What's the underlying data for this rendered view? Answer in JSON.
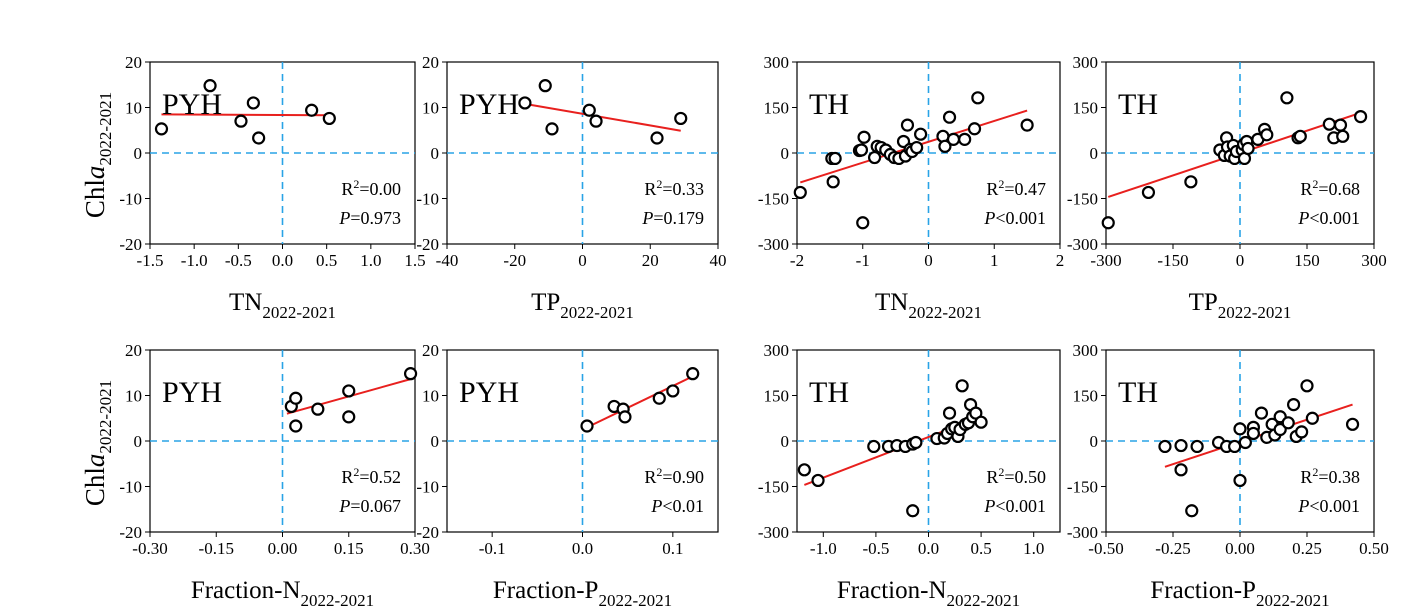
{
  "figure": {
    "ylabel_main": "Chl",
    "ylabel_italic": "a",
    "ylabel_sub": "2022-2021"
  },
  "chart_data": [
    {
      "type": "scatter",
      "label": "PYH",
      "xlabel": {
        "main": "TN",
        "sub": "2022-2021"
      },
      "xlim": [
        -1.5,
        1.5
      ],
      "ylim": [
        -20,
        20
      ],
      "xticks": [
        -1.5,
        -1.0,
        -0.5,
        0.0,
        0.5,
        1.0,
        1.5
      ],
      "xtick_labels": [
        "-1.5",
        "-1.0",
        "-0.5",
        "0.0",
        "0.5",
        "1.0",
        "1.5"
      ],
      "yticks": [
        20,
        10,
        0,
        -10,
        -20
      ],
      "ytick_labels": [
        "20",
        "10",
        "0",
        "-10",
        "-20"
      ],
      "points": [
        [
          -1.37,
          5.3
        ],
        [
          -0.82,
          14.8
        ],
        [
          -0.47,
          7.0
        ],
        [
          -0.33,
          11.0
        ],
        [
          -0.27,
          3.3
        ],
        [
          0.33,
          9.4
        ],
        [
          0.53,
          7.6
        ]
      ],
      "fit": {
        "x": [
          -1.37,
          0.53
        ],
        "y": [
          8.5,
          8.3
        ]
      },
      "r2": "0.00",
      "p_op": "=",
      "p": "0.973"
    },
    {
      "type": "scatter",
      "label": "PYH",
      "xlabel": {
        "main": "TP",
        "sub": "2022-2021"
      },
      "xlim": [
        -40,
        40
      ],
      "ylim": [
        -20,
        20
      ],
      "xticks": [
        -40,
        -20,
        0,
        20,
        40
      ],
      "xtick_labels": [
        "-40",
        "-20",
        "0",
        "20",
        "40"
      ],
      "yticks": [
        20,
        10,
        0,
        -10,
        -20
      ],
      "ytick_labels": [
        "20",
        "10",
        "0",
        "-10",
        "-20"
      ],
      "points": [
        [
          -11,
          14.8
        ],
        [
          -9,
          5.3
        ],
        [
          2,
          9.4
        ],
        [
          4,
          7.0
        ],
        [
          22,
          3.3
        ],
        [
          29,
          7.6
        ],
        [
          -17,
          11.0
        ]
      ],
      "fit": {
        "x": [
          -17,
          29
        ],
        "y": [
          10.8,
          4.9
        ]
      },
      "r2": "0.33",
      "p_op": "=",
      "p": "0.179"
    },
    {
      "type": "scatter",
      "label": "TH",
      "xlabel": {
        "main": "TN",
        "sub": "2022-2021"
      },
      "xlim": [
        -2,
        2
      ],
      "ylim": [
        -300,
        300
      ],
      "xticks": [
        -2,
        -1,
        0,
        1,
        2
      ],
      "xtick_labels": [
        "-2",
        "-1",
        "0",
        "1",
        "2"
      ],
      "yticks": [
        300,
        150,
        0,
        -150,
        -300
      ],
      "ytick_labels": [
        "300",
        "150",
        "0",
        "-150",
        "-300"
      ],
      "points": [
        [
          -1.95,
          -130
        ],
        [
          -1.47,
          -18
        ],
        [
          -1.42,
          -18
        ],
        [
          -1.45,
          -95
        ],
        [
          -1.05,
          8
        ],
        [
          -1.02,
          10
        ],
        [
          -0.98,
          52
        ],
        [
          -1.0,
          -230
        ],
        [
          -0.82,
          -15
        ],
        [
          -0.78,
          22
        ],
        [
          -0.72,
          18
        ],
        [
          -0.65,
          10
        ],
        [
          -0.58,
          -5
        ],
        [
          -0.52,
          -15
        ],
        [
          -0.45,
          -18
        ],
        [
          -0.38,
          38
        ],
        [
          -0.35,
          -10
        ],
        [
          -0.32,
          92
        ],
        [
          -0.28,
          12
        ],
        [
          -0.25,
          5
        ],
        [
          -0.18,
          18
        ],
        [
          -0.12,
          62
        ],
        [
          0.22,
          55
        ],
        [
          0.25,
          22
        ],
        [
          0.32,
          118
        ],
        [
          0.38,
          45
        ],
        [
          0.55,
          45
        ],
        [
          0.7,
          80
        ],
        [
          0.75,
          182
        ],
        [
          1.5,
          92
        ]
      ],
      "fit": {
        "x": [
          -1.95,
          1.5
        ],
        "y": [
          -97,
          140
        ]
      },
      "r2": "0.47",
      "p_op": "<",
      "p": "0.001"
    },
    {
      "type": "scatter",
      "label": "TH",
      "xlabel": {
        "main": "TP",
        "sub": "2022-2021"
      },
      "xlim": [
        -300,
        300
      ],
      "ylim": [
        -300,
        300
      ],
      "xticks": [
        -300,
        -150,
        0,
        150,
        300
      ],
      "xtick_labels": [
        "-300",
        "-150",
        "0",
        "150",
        "300"
      ],
      "yticks": [
        300,
        150,
        0,
        -150,
        -300
      ],
      "ytick_labels": [
        "300",
        "150",
        "0",
        "-150",
        "-300"
      ],
      "points": [
        [
          -295,
          -230
        ],
        [
          -205,
          -130
        ],
        [
          -110,
          -95
        ],
        [
          -45,
          10
        ],
        [
          -35,
          -8
        ],
        [
          -30,
          50
        ],
        [
          -28,
          20
        ],
        [
          -22,
          -10
        ],
        [
          -15,
          25
        ],
        [
          -12,
          -18
        ],
        [
          -8,
          5
        ],
        [
          5,
          10
        ],
        [
          8,
          28
        ],
        [
          10,
          -18
        ],
        [
          15,
          38
        ],
        [
          18,
          15
        ],
        [
          40,
          45
        ],
        [
          55,
          78
        ],
        [
          60,
          60
        ],
        [
          105,
          182
        ],
        [
          130,
          50
        ],
        [
          135,
          55
        ],
        [
          200,
          95
        ],
        [
          210,
          50
        ],
        [
          225,
          92
        ],
        [
          230,
          55
        ],
        [
          270,
          120
        ]
      ],
      "fit": {
        "x": [
          -295,
          275
        ],
        "y": [
          -145,
          135
        ]
      },
      "r2": "0.68",
      "p_op": "<",
      "p": "0.001"
    },
    {
      "type": "scatter",
      "label": "PYH",
      "xlabel": {
        "main": "Fraction-N",
        "sub": "2022-2021"
      },
      "xlim": [
        -0.3,
        0.3
      ],
      "ylim": [
        -20,
        20
      ],
      "xticks": [
        -0.3,
        -0.15,
        0.0,
        0.15,
        0.3
      ],
      "xtick_labels": [
        "-0.30",
        "-0.15",
        "0.00",
        "0.15",
        "0.30"
      ],
      "yticks": [
        20,
        10,
        0,
        -10,
        -20
      ],
      "ytick_labels": [
        "20",
        "10",
        "0",
        "-10",
        "-20"
      ],
      "points": [
        [
          0.02,
          7.6
        ],
        [
          0.03,
          9.4
        ],
        [
          0.03,
          3.3
        ],
        [
          0.08,
          7.0
        ],
        [
          0.15,
          11.0
        ],
        [
          0.15,
          5.3
        ],
        [
          0.29,
          14.8
        ]
      ],
      "fit": {
        "x": [
          0.01,
          0.29
        ],
        "y": [
          6.0,
          13.6
        ]
      },
      "r2": "0.52",
      "p_op": "=",
      "p": "0.067"
    },
    {
      "type": "scatter",
      "label": "PYH",
      "xlabel": {
        "main": "Fraction-P",
        "sub": "2022-2021"
      },
      "xlim": [
        -0.15,
        0.15
      ],
      "ylim": [
        -20,
        20
      ],
      "xticks": [
        -0.1,
        0.0,
        0.1
      ],
      "xtick_labels": [
        "-0.1",
        "0.0",
        "0.1"
      ],
      "yticks": [
        20,
        10,
        0,
        -10,
        -20
      ],
      "ytick_labels": [
        "20",
        "10",
        "0",
        "-10",
        "-20"
      ],
      "points": [
        [
          0.005,
          3.3
        ],
        [
          0.035,
          7.6
        ],
        [
          0.045,
          7.0
        ],
        [
          0.047,
          5.3
        ],
        [
          0.085,
          9.4
        ],
        [
          0.1,
          11.0
        ],
        [
          0.122,
          14.8
        ]
      ],
      "fit": {
        "x": [
          0.005,
          0.122
        ],
        "y": [
          3.0,
          14.2
        ]
      },
      "r2": "0.90",
      "p_op": "<",
      "p": "0.01"
    },
    {
      "type": "scatter",
      "label": "TH",
      "xlabel": {
        "main": "Fraction-N",
        "sub": "2022-2021"
      },
      "xlim": [
        -1.25,
        1.25
      ],
      "ylim": [
        -300,
        300
      ],
      "xticks": [
        -1.0,
        -0.5,
        0.0,
        0.5,
        1.0
      ],
      "xtick_labels": [
        "-1.0",
        "-0.5",
        "0.0",
        "0.5",
        "1.0"
      ],
      "yticks": [
        300,
        150,
        0,
        -150,
        -300
      ],
      "ytick_labels": [
        "300",
        "150",
        "0",
        "-150",
        "-300"
      ],
      "points": [
        [
          -1.18,
          -95
        ],
        [
          -1.05,
          -130
        ],
        [
          -0.52,
          -18
        ],
        [
          -0.38,
          -18
        ],
        [
          -0.3,
          -15
        ],
        [
          -0.22,
          -18
        ],
        [
          -0.15,
          -10
        ],
        [
          -0.12,
          -5
        ],
        [
          -0.15,
          -230
        ],
        [
          0.08,
          8
        ],
        [
          0.15,
          10
        ],
        [
          0.18,
          25
        ],
        [
          0.2,
          92
        ],
        [
          0.22,
          40
        ],
        [
          0.25,
          45
        ],
        [
          0.28,
          15
        ],
        [
          0.3,
          38
        ],
        [
          0.32,
          182
        ],
        [
          0.35,
          55
        ],
        [
          0.38,
          60
        ],
        [
          0.4,
          120
        ],
        [
          0.42,
          80
        ],
        [
          0.45,
          92
        ],
        [
          0.5,
          62
        ]
      ],
      "fit": {
        "x": [
          -1.18,
          0.5
        ],
        "y": [
          -145,
          80
        ]
      },
      "r2": "0.50",
      "p_op": "<",
      "p": "0.001"
    },
    {
      "type": "scatter",
      "label": "TH",
      "xlabel": {
        "main": "Fraction-P",
        "sub": "2022-2021"
      },
      "xlim": [
        -0.5,
        0.5
      ],
      "ylim": [
        -300,
        300
      ],
      "xticks": [
        -0.5,
        -0.25,
        0.0,
        0.25,
        0.5
      ],
      "xtick_labels": [
        "-0.50",
        "-0.25",
        "0.00",
        "0.25",
        "0.50"
      ],
      "yticks": [
        300,
        150,
        0,
        -150,
        -300
      ],
      "ytick_labels": [
        "300",
        "150",
        "0",
        "-150",
        "-300"
      ],
      "points": [
        [
          -0.28,
          -18
        ],
        [
          -0.22,
          -15
        ],
        [
          -0.22,
          -95
        ],
        [
          -0.18,
          -230
        ],
        [
          -0.16,
          -18
        ],
        [
          -0.08,
          -5
        ],
        [
          -0.05,
          -18
        ],
        [
          -0.02,
          -18
        ],
        [
          0.0,
          40
        ],
        [
          0.0,
          -130
        ],
        [
          0.02,
          -5
        ],
        [
          0.05,
          45
        ],
        [
          0.05,
          25
        ],
        [
          0.08,
          92
        ],
        [
          0.1,
          12
        ],
        [
          0.12,
          55
        ],
        [
          0.13,
          20
        ],
        [
          0.15,
          38
        ],
        [
          0.15,
          80
        ],
        [
          0.18,
          60
        ],
        [
          0.2,
          120
        ],
        [
          0.21,
          15
        ],
        [
          0.23,
          30
        ],
        [
          0.25,
          182
        ],
        [
          0.27,
          75
        ],
        [
          0.42,
          55
        ]
      ],
      "fit": {
        "x": [
          -0.28,
          0.42
        ],
        "y": [
          -85,
          120
        ]
      },
      "r2": "0.38",
      "p_op": "<",
      "p": "0.001"
    }
  ]
}
